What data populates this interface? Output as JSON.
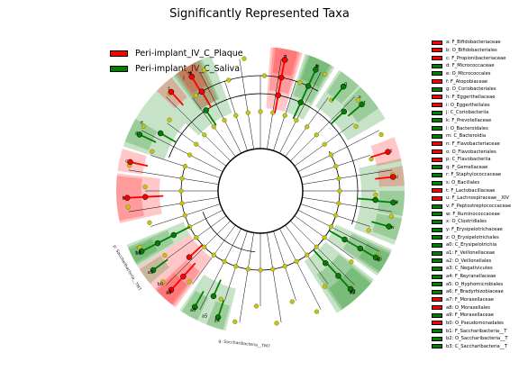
{
  "chart_data": {
    "type": "cladogram",
    "title": "Significantly Represented Taxa",
    "classes": [
      {
        "name": "Peri-implant_IV_C_Plaque",
        "color": "#ff0000"
      },
      {
        "name": "Peri-implant_IV_C_Saliva",
        "color": "#008000"
      }
    ],
    "taxa": [
      {
        "key": "a",
        "label": "a: F_Bifidobacteriaceae",
        "class": 0
      },
      {
        "key": "b",
        "label": "b: O_Bifidobacteriales",
        "class": 0
      },
      {
        "key": "c",
        "label": "c: F_Propionibacteriaceae",
        "class": 0
      },
      {
        "key": "d",
        "label": "d: F_Micrococcaceae",
        "class": 1
      },
      {
        "key": "e",
        "label": "e: O_Micrococcales",
        "class": 1
      },
      {
        "key": "f",
        "label": "f: F_Atopobiaceae",
        "class": 0
      },
      {
        "key": "g",
        "label": "g: O_Coriobacteriales",
        "class": 1
      },
      {
        "key": "h",
        "label": "h: F_Eggerthellaceae",
        "class": 0
      },
      {
        "key": "i",
        "label": "i: O_Eggerthellales",
        "class": 0
      },
      {
        "key": "j",
        "label": "j: C_Coriobacteriia",
        "class": 1
      },
      {
        "key": "k",
        "label": "k: F_Prevotellaceae",
        "class": 1
      },
      {
        "key": "l",
        "label": "l: O_Bacteroidales",
        "class": 1
      },
      {
        "key": "m",
        "label": "m: C_Bacteroidia",
        "class": 1
      },
      {
        "key": "n",
        "label": "n: F_Flavobacteriaceae",
        "class": 0
      },
      {
        "key": "o",
        "label": "o: O_Flavobacteriales",
        "class": 0
      },
      {
        "key": "p",
        "label": "p: C_Flavobacteriia",
        "class": 0
      },
      {
        "key": "q",
        "label": "q: F_Gemellaceae",
        "class": 1
      },
      {
        "key": "r",
        "label": "r: F_Staphylococcaceae",
        "class": 1
      },
      {
        "key": "s",
        "label": "s: O_Bacillales",
        "class": 1
      },
      {
        "key": "t",
        "label": "t: F_Lactobacillaceae",
        "class": 0
      },
      {
        "key": "u",
        "label": "u: F_Lachnospiraceae__XIV",
        "class": 0
      },
      {
        "key": "v",
        "label": "v: F_Peptostreptococcaceae",
        "class": 1
      },
      {
        "key": "w",
        "label": "w: F_Ruminococcaceae",
        "class": 1
      },
      {
        "key": "x",
        "label": "x: O_Clostridiales",
        "class": 1
      },
      {
        "key": "y",
        "label": "y: F_Erysipelotrichaceae",
        "class": 1
      },
      {
        "key": "z",
        "label": "z: O_Erysipelotrichales",
        "class": 1
      },
      {
        "key": "a0",
        "label": "a0: C_Erysipelotrichia",
        "class": 1
      },
      {
        "key": "a1",
        "label": "a1: F_Veillonellaceae",
        "class": 1
      },
      {
        "key": "a2",
        "label": "a2: O_Veillonellales",
        "class": 1
      },
      {
        "key": "a3",
        "label": "a3: C_Negativicutes",
        "class": 1
      },
      {
        "key": "a4",
        "label": "a4: F_Reyranellaceae",
        "class": 1
      },
      {
        "key": "a5",
        "label": "a5: O_Hyphomicrobiales",
        "class": 1
      },
      {
        "key": "a6",
        "label": "a6: F_Bradyrhizobiaceae",
        "class": 1
      },
      {
        "key": "a7",
        "label": "a7: F_Moraxellaceae",
        "class": 0
      },
      {
        "key": "a8",
        "label": "a8: O_Moraxellales",
        "class": 0
      },
      {
        "key": "a9",
        "label": "a9: F_Moraxellaceae",
        "class": 1
      },
      {
        "key": "b0",
        "label": "b0: O_Pseudomonadales",
        "class": 0
      },
      {
        "key": "b1",
        "label": "b1: F_Saccharibacteria__T",
        "class": 1
      },
      {
        "key": "b2",
        "label": "b2: O_Saccharibacteria__T",
        "class": 1
      },
      {
        "key": "b3",
        "label": "b3: C_Saccharibacteria__T",
        "class": 1
      }
    ],
    "wedges": [
      {
        "label": "a",
        "class": 0,
        "start": 168,
        "end": 186,
        "level": 6
      },
      {
        "label": "b",
        "class": 0,
        "start": 167,
        "end": 187,
        "level": 5
      },
      {
        "label": "c",
        "class": 0,
        "start": 188,
        "end": 197,
        "level": 6
      },
      {
        "label": "d",
        "class": 1,
        "start": 200,
        "end": 210,
        "level": 6
      },
      {
        "label": "e",
        "class": 1,
        "start": 198,
        "end": 222,
        "level": 5
      },
      {
        "label": "f",
        "class": 0,
        "start": 224,
        "end": 232,
        "level": 6
      },
      {
        "label": "g",
        "class": 1,
        "start": 233,
        "end": 246,
        "level": 5
      },
      {
        "label": "h",
        "class": 0,
        "start": 235,
        "end": 243,
        "level": 6
      },
      {
        "label": "i",
        "class": 0,
        "start": 234,
        "end": 245,
        "level": 5
      },
      {
        "label": "j",
        "class": 1,
        "start": 222,
        "end": 250,
        "level": 4
      },
      {
        "label": "k",
        "class": 1,
        "start": 290,
        "end": 299,
        "level": 6
      },
      {
        "label": "l",
        "class": 1,
        "start": 289,
        "end": 300,
        "level": 5
      },
      {
        "label": "m",
        "class": 1,
        "start": 288,
        "end": 301,
        "level": 4
      },
      {
        "label": "n",
        "class": 0,
        "start": 276,
        "end": 285,
        "level": 6
      },
      {
        "label": "o",
        "class": 0,
        "start": 275,
        "end": 286,
        "level": 5
      },
      {
        "label": "p",
        "class": 0,
        "start": 274,
        "end": 287,
        "level": 4
      },
      {
        "label": "q",
        "class": 1,
        "start": 304,
        "end": 313,
        "level": 6
      },
      {
        "label": "r",
        "class": 1,
        "start": 314,
        "end": 325,
        "level": 6
      },
      {
        "label": "s",
        "class": 1,
        "start": 303,
        "end": 330,
        "level": 5
      },
      {
        "label": "t",
        "class": 0,
        "start": 338,
        "end": 348,
        "level": 6
      },
      {
        "label": "u",
        "class": 0,
        "start": 350,
        "end": 358,
        "level": 6
      },
      {
        "label": "v",
        "class": 1,
        "start": 0,
        "end": 10,
        "level": 6
      },
      {
        "label": "w",
        "class": 1,
        "start": 11,
        "end": 20,
        "level": 6
      },
      {
        "label": "x",
        "class": 1,
        "start": 347,
        "end": 22,
        "level": 5
      },
      {
        "label": "y",
        "class": 1,
        "start": 26,
        "end": 34,
        "level": 6
      },
      {
        "label": "z",
        "class": 1,
        "start": 25,
        "end": 35,
        "level": 5
      },
      {
        "label": "a0",
        "class": 1,
        "start": 24,
        "end": 36,
        "level": 4
      },
      {
        "label": "a1",
        "class": 1,
        "start": 40,
        "end": 55,
        "level": 6
      },
      {
        "label": "a2",
        "class": 1,
        "start": 39,
        "end": 56,
        "level": 5
      },
      {
        "label": "a3",
        "class": 1,
        "start": 38,
        "end": 58,
        "level": 4
      },
      {
        "label": "a4",
        "class": 1,
        "start": 105,
        "end": 112,
        "level": 6
      },
      {
        "label": "a5",
        "class": 1,
        "start": 104,
        "end": 124,
        "level": 5
      },
      {
        "label": "a6",
        "class": 1,
        "start": 116,
        "end": 123,
        "level": 6
      },
      {
        "label": "a7",
        "class": 0,
        "start": 128,
        "end": 136,
        "level": 6
      },
      {
        "label": "a8",
        "class": 0,
        "start": 127,
        "end": 137,
        "level": 5
      },
      {
        "label": "a9",
        "class": 1,
        "start": 140,
        "end": 147,
        "level": 6
      },
      {
        "label": "b0",
        "class": 0,
        "start": 126,
        "end": 148,
        "level": 4
      },
      {
        "label": "b1",
        "class": 1,
        "start": 150,
        "end": 156,
        "level": 6
      },
      {
        "label": "b2",
        "class": 1,
        "start": 149,
        "end": 157,
        "level": 5
      },
      {
        "label": "b3",
        "class": 1,
        "start": 148,
        "end": 158,
        "level": 4
      }
    ],
    "outer_labels": [
      {
        "text": "g: Saccharibacteria__TM7",
        "angle": 96
      },
      {
        "text": "p: Saccharibacteria__TM7",
        "angle": 150
      }
    ]
  }
}
